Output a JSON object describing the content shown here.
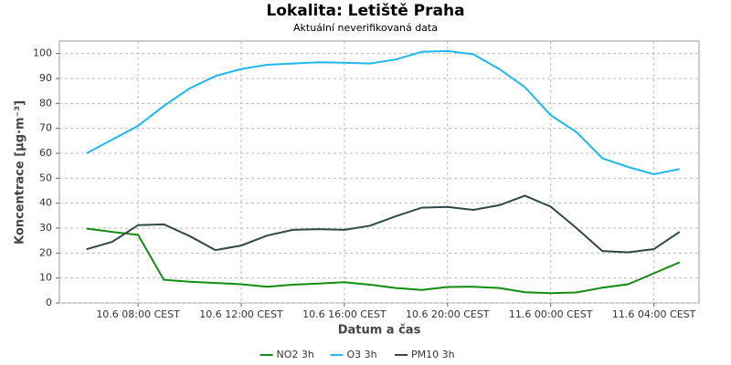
{
  "chart_data": {
    "type": "line",
    "title": "Lokalita: Letiště Praha",
    "subtitle": "Aktuální neverifikovaná data",
    "x_label": "Datum a čas",
    "y_label": "Koncentrace [µg·m⁻³]",
    "x": [
      6,
      7,
      8,
      9,
      10,
      11,
      12,
      13,
      14,
      15,
      16,
      17,
      18,
      19,
      20,
      21,
      22,
      23,
      24,
      25,
      26,
      27,
      28,
      29
    ],
    "xlim": [
      4.95,
      29.75
    ],
    "xticks": [
      {
        "value": 8,
        "label": "10.6 08:00 CEST"
      },
      {
        "value": 12,
        "label": "10.6 12:00 CEST"
      },
      {
        "value": 16,
        "label": "10.6 16:00 CEST"
      },
      {
        "value": 20,
        "label": "10.6 20:00 CEST"
      },
      {
        "value": 24,
        "label": "11.6 00:00 CEST"
      },
      {
        "value": 28,
        "label": "11.6 04:00 CEST"
      }
    ],
    "ylim": [
      0,
      105
    ],
    "yticks": [
      0,
      10,
      20,
      30,
      40,
      50,
      60,
      70,
      80,
      90,
      100
    ],
    "grid": true,
    "legend": "bottom",
    "series": [
      {
        "name": "NO2 3h",
        "color": "#108c10",
        "values": [
          29.8,
          28.5,
          27.3,
          9.3,
          8.5,
          8.0,
          7.5,
          6.5,
          7.3,
          7.8,
          8.3,
          7.3,
          6.0,
          5.2,
          6.4,
          6.5,
          6.0,
          4.3,
          3.9,
          4.2,
          6.1,
          7.5,
          11.9,
          16.3
        ]
      },
      {
        "name": "O3 3h",
        "color": "#1cb8ee",
        "values": [
          60,
          65.5,
          71,
          79,
          86,
          91,
          93.8,
          95.5,
          96,
          96.5,
          96.3,
          96,
          97.6,
          100.7,
          101,
          99.7,
          93.8,
          86.5,
          75.3,
          68.5,
          58,
          54.5,
          51.6,
          53.7
        ]
      },
      {
        "name": "PM10 3h",
        "color": "#2e4848",
        "values": [
          21.5,
          24.5,
          31.2,
          31.5,
          26.8,
          21.2,
          23,
          27,
          29.3,
          29.6,
          29.3,
          31,
          34.8,
          38.2,
          38.5,
          37.3,
          39.2,
          43,
          38.6,
          30,
          20.8,
          20.3,
          21.6,
          28.5
        ]
      }
    ]
  }
}
